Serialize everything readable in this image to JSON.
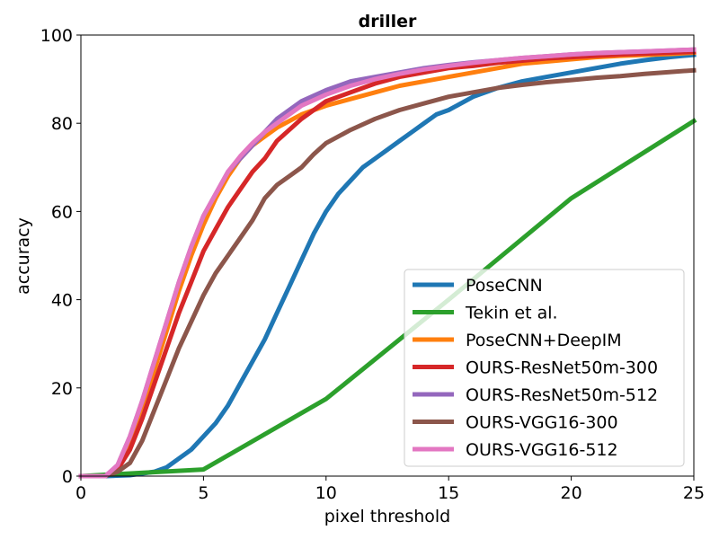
{
  "chart_data": {
    "type": "line",
    "title": "driller",
    "xlabel": "pixel threshold",
    "ylabel": "accuracy",
    "xlim": [
      0,
      25
    ],
    "ylim": [
      0,
      100
    ],
    "xticks": [
      0,
      5,
      10,
      15,
      20,
      25
    ],
    "yticks": [
      0,
      20,
      40,
      60,
      80,
      100
    ],
    "grid": false,
    "legend_position": "lower-right",
    "series": [
      {
        "name": "PoseCNN",
        "color": "#1f77b4",
        "x": [
          0,
          1,
          2,
          3,
          3.5,
          4,
          4.5,
          5,
          5.5,
          6,
          6.5,
          7,
          7.5,
          8,
          8.5,
          9,
          9.5,
          10,
          10.5,
          11,
          11.5,
          12,
          12.5,
          13,
          13.5,
          14,
          14.5,
          15,
          16,
          17,
          18,
          19,
          20,
          21,
          22,
          23,
          24,
          25
        ],
        "y": [
          0,
          0,
          0.2,
          1,
          2,
          4,
          6,
          9,
          12,
          16,
          21,
          26,
          31,
          37,
          43,
          49,
          55,
          60,
          64,
          67,
          70,
          72,
          74,
          76,
          78,
          80,
          82,
          83,
          86,
          88,
          89.5,
          90.5,
          91.5,
          92.5,
          93.5,
          94.3,
          95,
          95.5
        ]
      },
      {
        "name": "Tekin et al.",
        "color": "#2ca02c",
        "x": [
          0,
          5,
          10,
          15,
          20,
          25
        ],
        "y": [
          0,
          1.5,
          17.5,
          40,
          63,
          80.5
        ]
      },
      {
        "name": "PoseCNN+DeepIM",
        "color": "#ff7f0e",
        "x": [
          0,
          1,
          1.5,
          2,
          2.5,
          3,
          3.5,
          4,
          4.5,
          5,
          5.5,
          6,
          6.5,
          7,
          7.5,
          8,
          9,
          10,
          11,
          12,
          13,
          14,
          15,
          16,
          17,
          18,
          19,
          20,
          21,
          22,
          23,
          24,
          25
        ],
        "y": [
          0,
          0,
          2,
          8,
          16,
          24,
          33,
          42,
          50,
          57,
          63,
          68,
          72,
          75,
          77,
          79,
          82,
          84,
          85.5,
          87,
          88.5,
          89.5,
          90.5,
          91.5,
          92.5,
          93.5,
          94,
          94.5,
          95,
          95.3,
          95.5,
          95.7,
          96
        ]
      },
      {
        "name": "OURS-ResNet50m-300",
        "color": "#d62728",
        "x": [
          0,
          1,
          1.5,
          2,
          2.5,
          3,
          3.5,
          4,
          4.5,
          5,
          5.5,
          6,
          6.5,
          7,
          7.5,
          8,
          9,
          10,
          11,
          12,
          13,
          14,
          15,
          16,
          17,
          18,
          19,
          20,
          21,
          22,
          23,
          24,
          25
        ],
        "y": [
          0,
          0,
          1.5,
          6,
          13,
          21,
          29,
          37,
          44,
          51,
          56,
          61,
          65,
          69,
          72,
          76,
          81,
          85,
          87,
          89,
          90.5,
          91.5,
          92.5,
          93,
          93.7,
          94.2,
          94.7,
          95,
          95.3,
          95.6,
          95.8,
          96,
          96.2
        ]
      },
      {
        "name": "OURS-ResNet50m-512",
        "color": "#9467bd",
        "x": [
          0,
          1,
          1.5,
          2,
          2.5,
          3,
          3.5,
          4,
          4.5,
          5,
          5.5,
          6,
          6.5,
          7,
          7.5,
          8,
          9,
          10,
          11,
          12,
          13,
          14,
          15,
          16,
          17,
          18,
          19,
          20,
          21,
          22,
          23,
          24,
          25
        ],
        "y": [
          0,
          0,
          2.5,
          9,
          17,
          26,
          35,
          44,
          52,
          59,
          64,
          69,
          72,
          75,
          78,
          81,
          85,
          87.5,
          89.5,
          90.5,
          91.5,
          92.5,
          93.2,
          93.8,
          94.3,
          94.8,
          95.2,
          95.6,
          95.9,
          96.1,
          96.3,
          96.5,
          96.7
        ]
      },
      {
        "name": "OURS-VGG16-300",
        "color": "#8c564b",
        "x": [
          0,
          1,
          1.5,
          2,
          2.5,
          3,
          3.5,
          4,
          4.5,
          5,
          5.5,
          6,
          6.5,
          7,
          7.5,
          8,
          8.5,
          9,
          9.5,
          10,
          11,
          12,
          13,
          14,
          15,
          16,
          17,
          18,
          19,
          20,
          21,
          22,
          23,
          24,
          25
        ],
        "y": [
          0,
          0,
          1,
          3,
          8,
          15,
          22,
          29,
          35,
          41,
          46,
          50,
          54,
          58,
          63,
          66,
          68,
          70,
          73,
          75.5,
          78.5,
          81,
          83,
          84.5,
          86,
          87,
          88,
          88.7,
          89.3,
          89.8,
          90.3,
          90.7,
          91.2,
          91.6,
          92
        ]
      },
      {
        "name": "OURS-VGG16-512",
        "color": "#e377c2",
        "x": [
          0,
          1,
          1.5,
          2,
          2.5,
          3,
          3.5,
          4,
          4.5,
          5,
          5.5,
          6,
          6.5,
          7,
          7.5,
          8,
          9,
          10,
          11,
          12,
          13,
          14,
          15,
          16,
          17,
          18,
          19,
          20,
          21,
          22,
          23,
          24,
          25
        ],
        "y": [
          0,
          0,
          2.5,
          9,
          17,
          26,
          35,
          44,
          52,
          59,
          64,
          69,
          72.5,
          75.5,
          78,
          80,
          84,
          86.5,
          88.5,
          90,
          91.2,
          92.2,
          93,
          93.7,
          94.3,
          94.8,
          95.2,
          95.6,
          95.9,
          96.1,
          96.3,
          96.5,
          96.7
        ]
      }
    ]
  }
}
